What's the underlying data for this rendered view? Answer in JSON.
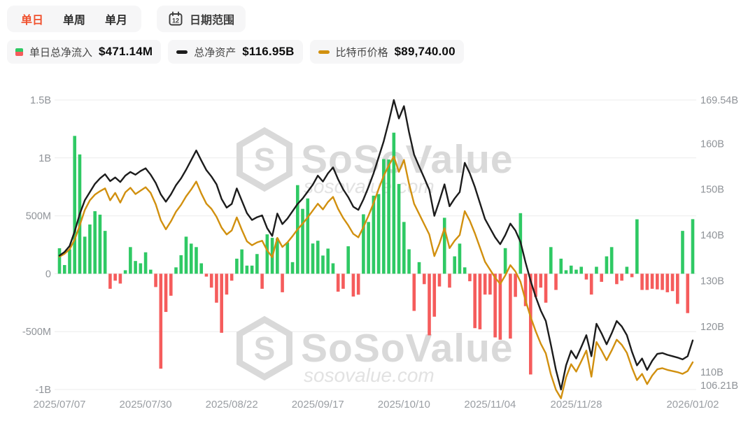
{
  "toolbar": {
    "tabs": [
      {
        "label": "单日",
        "active": true
      },
      {
        "label": "单周",
        "active": false
      },
      {
        "label": "单月",
        "active": false
      }
    ],
    "date_range_label": "日期范围"
  },
  "legend": [
    {
      "label": "单日总净流入",
      "value": "$471.14M",
      "marker": "green-red-bar"
    },
    {
      "label": "总净资产",
      "value": "$116.95B",
      "marker": "black-dash"
    },
    {
      "label": "比特币价格",
      "value": "$89,740.00",
      "marker": "gold-dash"
    }
  ],
  "watermark": {
    "brand": "SoSoValue",
    "domain": "sosovalue.com",
    "logo": "hexagon-s"
  },
  "colors": {
    "accent": "#f0512e",
    "pill": "#f6f6f7",
    "green": "#2fc964",
    "red": "#f55c5c",
    "black_line": "#1c1c1c",
    "gold": "#d1900f",
    "grid": "#ececec"
  },
  "chart_data": {
    "type": "bar",
    "subtype": "combo-bar-plus-two-lines",
    "title": "Bitcoin spot ETF daily total net inflow vs total net assets vs BTC price",
    "grid": true,
    "legend_position": "top",
    "left_axis": {
      "unit": "$",
      "tick_labels": [
        "1.5B",
        "1B",
        "500M",
        "0",
        "-500M",
        "-1B"
      ],
      "tick_values_m": [
        1500,
        1000,
        500,
        0,
        -500,
        -1000
      ],
      "range_m": [
        -1000,
        1500
      ]
    },
    "right_axis": {
      "unit": "$B",
      "tick_labels": [
        "169.54B",
        "160B",
        "150B",
        "140B",
        "130B",
        "120B",
        "110B",
        "106.21B"
      ],
      "tick_values_b": [
        169.54,
        160,
        150,
        140,
        130,
        120,
        110,
        106.21
      ],
      "min_b": 106.21,
      "max_b": 169.54
    },
    "btc_axis_hidden": {
      "note": "BTC price plotted on hidden scale",
      "observed_range": [
        83400,
        125900
      ]
    },
    "x_tick_labels": [
      "2025/07/07",
      "2025/07/30",
      "2025/08/22",
      "2025/09/17",
      "2025/10/10",
      "2025/11/04",
      "2025/11/28",
      "2026/01/02"
    ],
    "x_tick_indices": [
      0,
      17,
      34,
      51,
      68,
      85,
      102,
      125
    ],
    "dates": [
      "2025/07/07",
      "2025/07/08",
      "2025/07/09",
      "2025/07/10",
      "2025/07/11",
      "2025/07/14",
      "2025/07/15",
      "2025/07/16",
      "2025/07/17",
      "2025/07/18",
      "2025/07/21",
      "2025/07/22",
      "2025/07/23",
      "2025/07/24",
      "2025/07/25",
      "2025/07/28",
      "2025/07/29",
      "2025/07/30",
      "2025/07/31",
      "2025/08/01",
      "2025/08/04",
      "2025/08/05",
      "2025/08/06",
      "2025/08/07",
      "2025/08/08",
      "2025/08/11",
      "2025/08/12",
      "2025/08/13",
      "2025/08/14",
      "2025/08/15",
      "2025/08/18",
      "2025/08/19",
      "2025/08/20",
      "2025/08/21",
      "2025/08/22",
      "2025/08/25",
      "2025/08/26",
      "2025/08/27",
      "2025/08/28",
      "2025/08/29",
      "2025/09/02",
      "2025/09/03",
      "2025/09/04",
      "2025/09/05",
      "2025/09/08",
      "2025/09/09",
      "2025/09/10",
      "2025/09/11",
      "2025/09/12",
      "2025/09/15",
      "2025/09/16",
      "2025/09/17",
      "2025/09/18",
      "2025/09/19",
      "2025/09/22",
      "2025/09/23",
      "2025/09/24",
      "2025/09/25",
      "2025/09/26",
      "2025/09/29",
      "2025/09/30",
      "2025/10/01",
      "2025/10/02",
      "2025/10/03",
      "2025/10/06",
      "2025/10/07",
      "2025/10/08",
      "2025/10/09",
      "2025/10/10",
      "2025/10/13",
      "2025/10/14",
      "2025/10/15",
      "2025/10/16",
      "2025/10/17",
      "2025/10/20",
      "2025/10/21",
      "2025/10/22",
      "2025/10/23",
      "2025/10/24",
      "2025/10/27",
      "2025/10/28",
      "2025/10/29",
      "2025/10/30",
      "2025/10/31",
      "2025/11/03",
      "2025/11/04",
      "2025/11/05",
      "2025/11/06",
      "2025/11/07",
      "2025/11/10",
      "2025/11/11",
      "2025/11/12",
      "2025/11/13",
      "2025/11/14",
      "2025/11/17",
      "2025/11/18",
      "2025/11/19",
      "2025/11/20",
      "2025/11/21",
      "2025/11/24",
      "2025/11/25",
      "2025/11/26",
      "2025/11/28",
      "2025/12/01",
      "2025/12/02",
      "2025/12/03",
      "2025/12/04",
      "2025/12/05",
      "2025/12/08",
      "2025/12/09",
      "2025/12/10",
      "2025/12/11",
      "2025/12/12",
      "2025/12/15",
      "2025/12/16",
      "2025/12/17",
      "2025/12/18",
      "2025/12/19",
      "2025/12/22",
      "2025/12/23",
      "2025/12/24",
      "2025/12/26",
      "2025/12/29",
      "2025/12/30",
      "2025/12/31",
      "2026/01/02"
    ],
    "series": [
      {
        "name": "单日总净流入",
        "type": "bar",
        "unit": "$M",
        "values": [
          220,
          75,
          210,
          1190,
          1030,
          320,
          425,
          540,
          510,
          370,
          -130,
          -60,
          -85,
          30,
          230,
          110,
          90,
          185,
          35,
          -115,
          -820,
          -330,
          -190,
          55,
          160,
          320,
          260,
          230,
          90,
          -25,
          -120,
          -250,
          -510,
          -180,
          -60,
          130,
          210,
          70,
          70,
          170,
          -130,
          340,
          310,
          305,
          -160,
          270,
          100,
          765,
          560,
          650,
          261,
          285,
          157,
          217,
          90,
          -155,
          -130,
          237,
          -197,
          -181,
          513,
          447,
          674,
          688,
          990,
          986,
          1218,
          775,
          447,
          211,
          -321,
          100,
          -90,
          -532,
          -371,
          -110,
          483,
          -120,
          150,
          260,
          55,
          -65,
          -470,
          -480,
          -180,
          -180,
          -550,
          -570,
          221,
          -560,
          -200,
          523,
          -280,
          -870,
          -200,
          -120,
          -250,
          230,
          -140,
          130,
          30,
          70,
          35,
          60,
          -50,
          -180,
          60,
          -70,
          150,
          230,
          -90,
          -60,
          60,
          -30,
          470,
          -140,
          -140,
          -130,
          -135,
          -140,
          -160,
          -150,
          -260,
          370,
          -340,
          471.14
        ]
      },
      {
        "name": "总净资产",
        "type": "line",
        "unit": "$B",
        "values": [
          135.5,
          136.3,
          137.6,
          140.8,
          144.6,
          147.6,
          149.4,
          151.2,
          152.4,
          153.3,
          151.8,
          152.6,
          151.6,
          153.0,
          153.8,
          153.2,
          154.0,
          154.6,
          153.2,
          151.4,
          148.9,
          147.3,
          148.9,
          150.9,
          152.4,
          154.3,
          156.4,
          158.5,
          156.3,
          154.2,
          152.8,
          151.1,
          147.9,
          146.0,
          146.8,
          150.2,
          147.5,
          144.8,
          143.3,
          143.9,
          144.3,
          141.5,
          139.8,
          144.7,
          142.4,
          143.6,
          145.2,
          146.8,
          148.0,
          149.5,
          151.0,
          153.0,
          151.7,
          153.5,
          154.8,
          152.2,
          150.0,
          148.3,
          146.2,
          145.5,
          147.8,
          150.5,
          153.5,
          157.0,
          160.5,
          164.8,
          169.54,
          165.5,
          168.2,
          162.5,
          157.6,
          155.0,
          152.5,
          149.9,
          144.2,
          147.5,
          151.1,
          146.3,
          148.0,
          149.4,
          155.8,
          153.5,
          150.5,
          147.0,
          143.5,
          141.5,
          139.5,
          138.0,
          140.0,
          142.5,
          141.0,
          138.5,
          134.0,
          130.0,
          126.5,
          123.5,
          121.2,
          116.0,
          110.5,
          106.21,
          111.5,
          114.7,
          113.0,
          115.5,
          118.1,
          113.5,
          120.6,
          118.5,
          116.1,
          118.5,
          121.2,
          120.0,
          118.1,
          114.5,
          111.5,
          113.0,
          110.5,
          112.5,
          114.0,
          114.2,
          113.8,
          113.5,
          113.2,
          112.8,
          113.5,
          116.95
        ]
      },
      {
        "name": "比特币价格",
        "type": "line",
        "unit": "$",
        "values": [
          108300,
          108800,
          109600,
          111300,
          113800,
          116500,
          118200,
          119200,
          119800,
          120300,
          118200,
          119500,
          117800,
          119600,
          120400,
          119300,
          119900,
          120500,
          119500,
          117500,
          114700,
          113100,
          114500,
          116200,
          117400,
          118900,
          120100,
          121500,
          119400,
          117600,
          116700,
          115300,
          113400,
          112200,
          112900,
          115200,
          113000,
          111000,
          110300,
          110800,
          111100,
          109400,
          108200,
          111600,
          110000,
          110800,
          111900,
          113100,
          114100,
          115200,
          116400,
          117600,
          116600,
          117900,
          118800,
          116700,
          115100,
          113800,
          112300,
          111700,
          113500,
          115500,
          117700,
          120200,
          122500,
          124300,
          125900,
          123200,
          125300,
          121100,
          117600,
          115800,
          114000,
          112200,
          108400,
          110600,
          113300,
          109800,
          111100,
          112100,
          116300,
          114600,
          112400,
          109900,
          107400,
          106000,
          104600,
          103500,
          105000,
          106800,
          105700,
          103900,
          100600,
          97700,
          95200,
          93000,
          91300,
          87600,
          84900,
          83400,
          87100,
          89400,
          88100,
          89900,
          91800,
          87200,
          93300,
          91800,
          90100,
          91800,
          93700,
          92800,
          91400,
          88800,
          86600,
          87700,
          85900,
          87400,
          88500,
          88700,
          88400,
          88200,
          88000,
          87700,
          88200,
          89740
        ]
      }
    ]
  }
}
